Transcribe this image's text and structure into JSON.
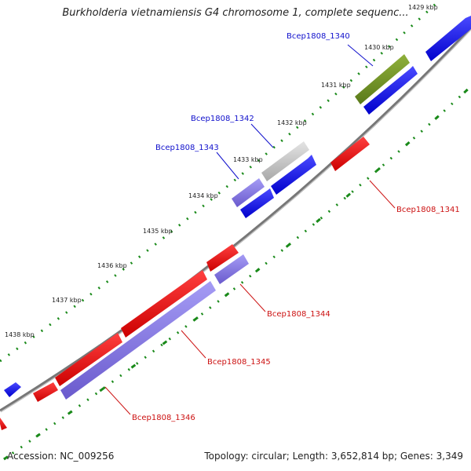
{
  "title": "Burkholderia vietnamiensis G4 chromosome 1, complete sequenc...",
  "footer": {
    "accession": "Accession: NC_009256",
    "summary": "Topology: circular; Length: 3,652,814 bp; Genes: 3,349"
  },
  "ticks": [
    "1429 kbp",
    "1430 kbp",
    "1431 kbp",
    "1432 kbp",
    "1433 kbp",
    "1434 kbp",
    "1435 kbp",
    "1436 kbp",
    "1437 kbp",
    "1438 kbp"
  ],
  "genes": [
    {
      "id": "Bcep1808_1340",
      "color": "#1010cc",
      "strand": "forward"
    },
    {
      "id": "Bcep1808_1341",
      "color": "#cc1111",
      "strand": "reverse"
    },
    {
      "id": "Bcep1808_1342",
      "color": "#1010cc",
      "strand": "forward"
    },
    {
      "id": "Bcep1808_1343",
      "color": "#1010cc",
      "strand": "forward"
    },
    {
      "id": "Bcep1808_1344",
      "color": "#cc1111",
      "strand": "reverse"
    },
    {
      "id": "Bcep1808_1345",
      "color": "#cc1111",
      "strand": "reverse"
    },
    {
      "id": "Bcep1808_1346",
      "color": "#cc1111",
      "strand": "reverse"
    }
  ],
  "colors": {
    "forward_gene": "#0000ee",
    "reverse_gene": "#ee0000",
    "cog_olive": "#6b8e23",
    "cog_gray": "#c0c0c0",
    "cog_purple": "#7b68ee",
    "backbone": "#808080",
    "tick_dots": "#1a8a1a"
  }
}
